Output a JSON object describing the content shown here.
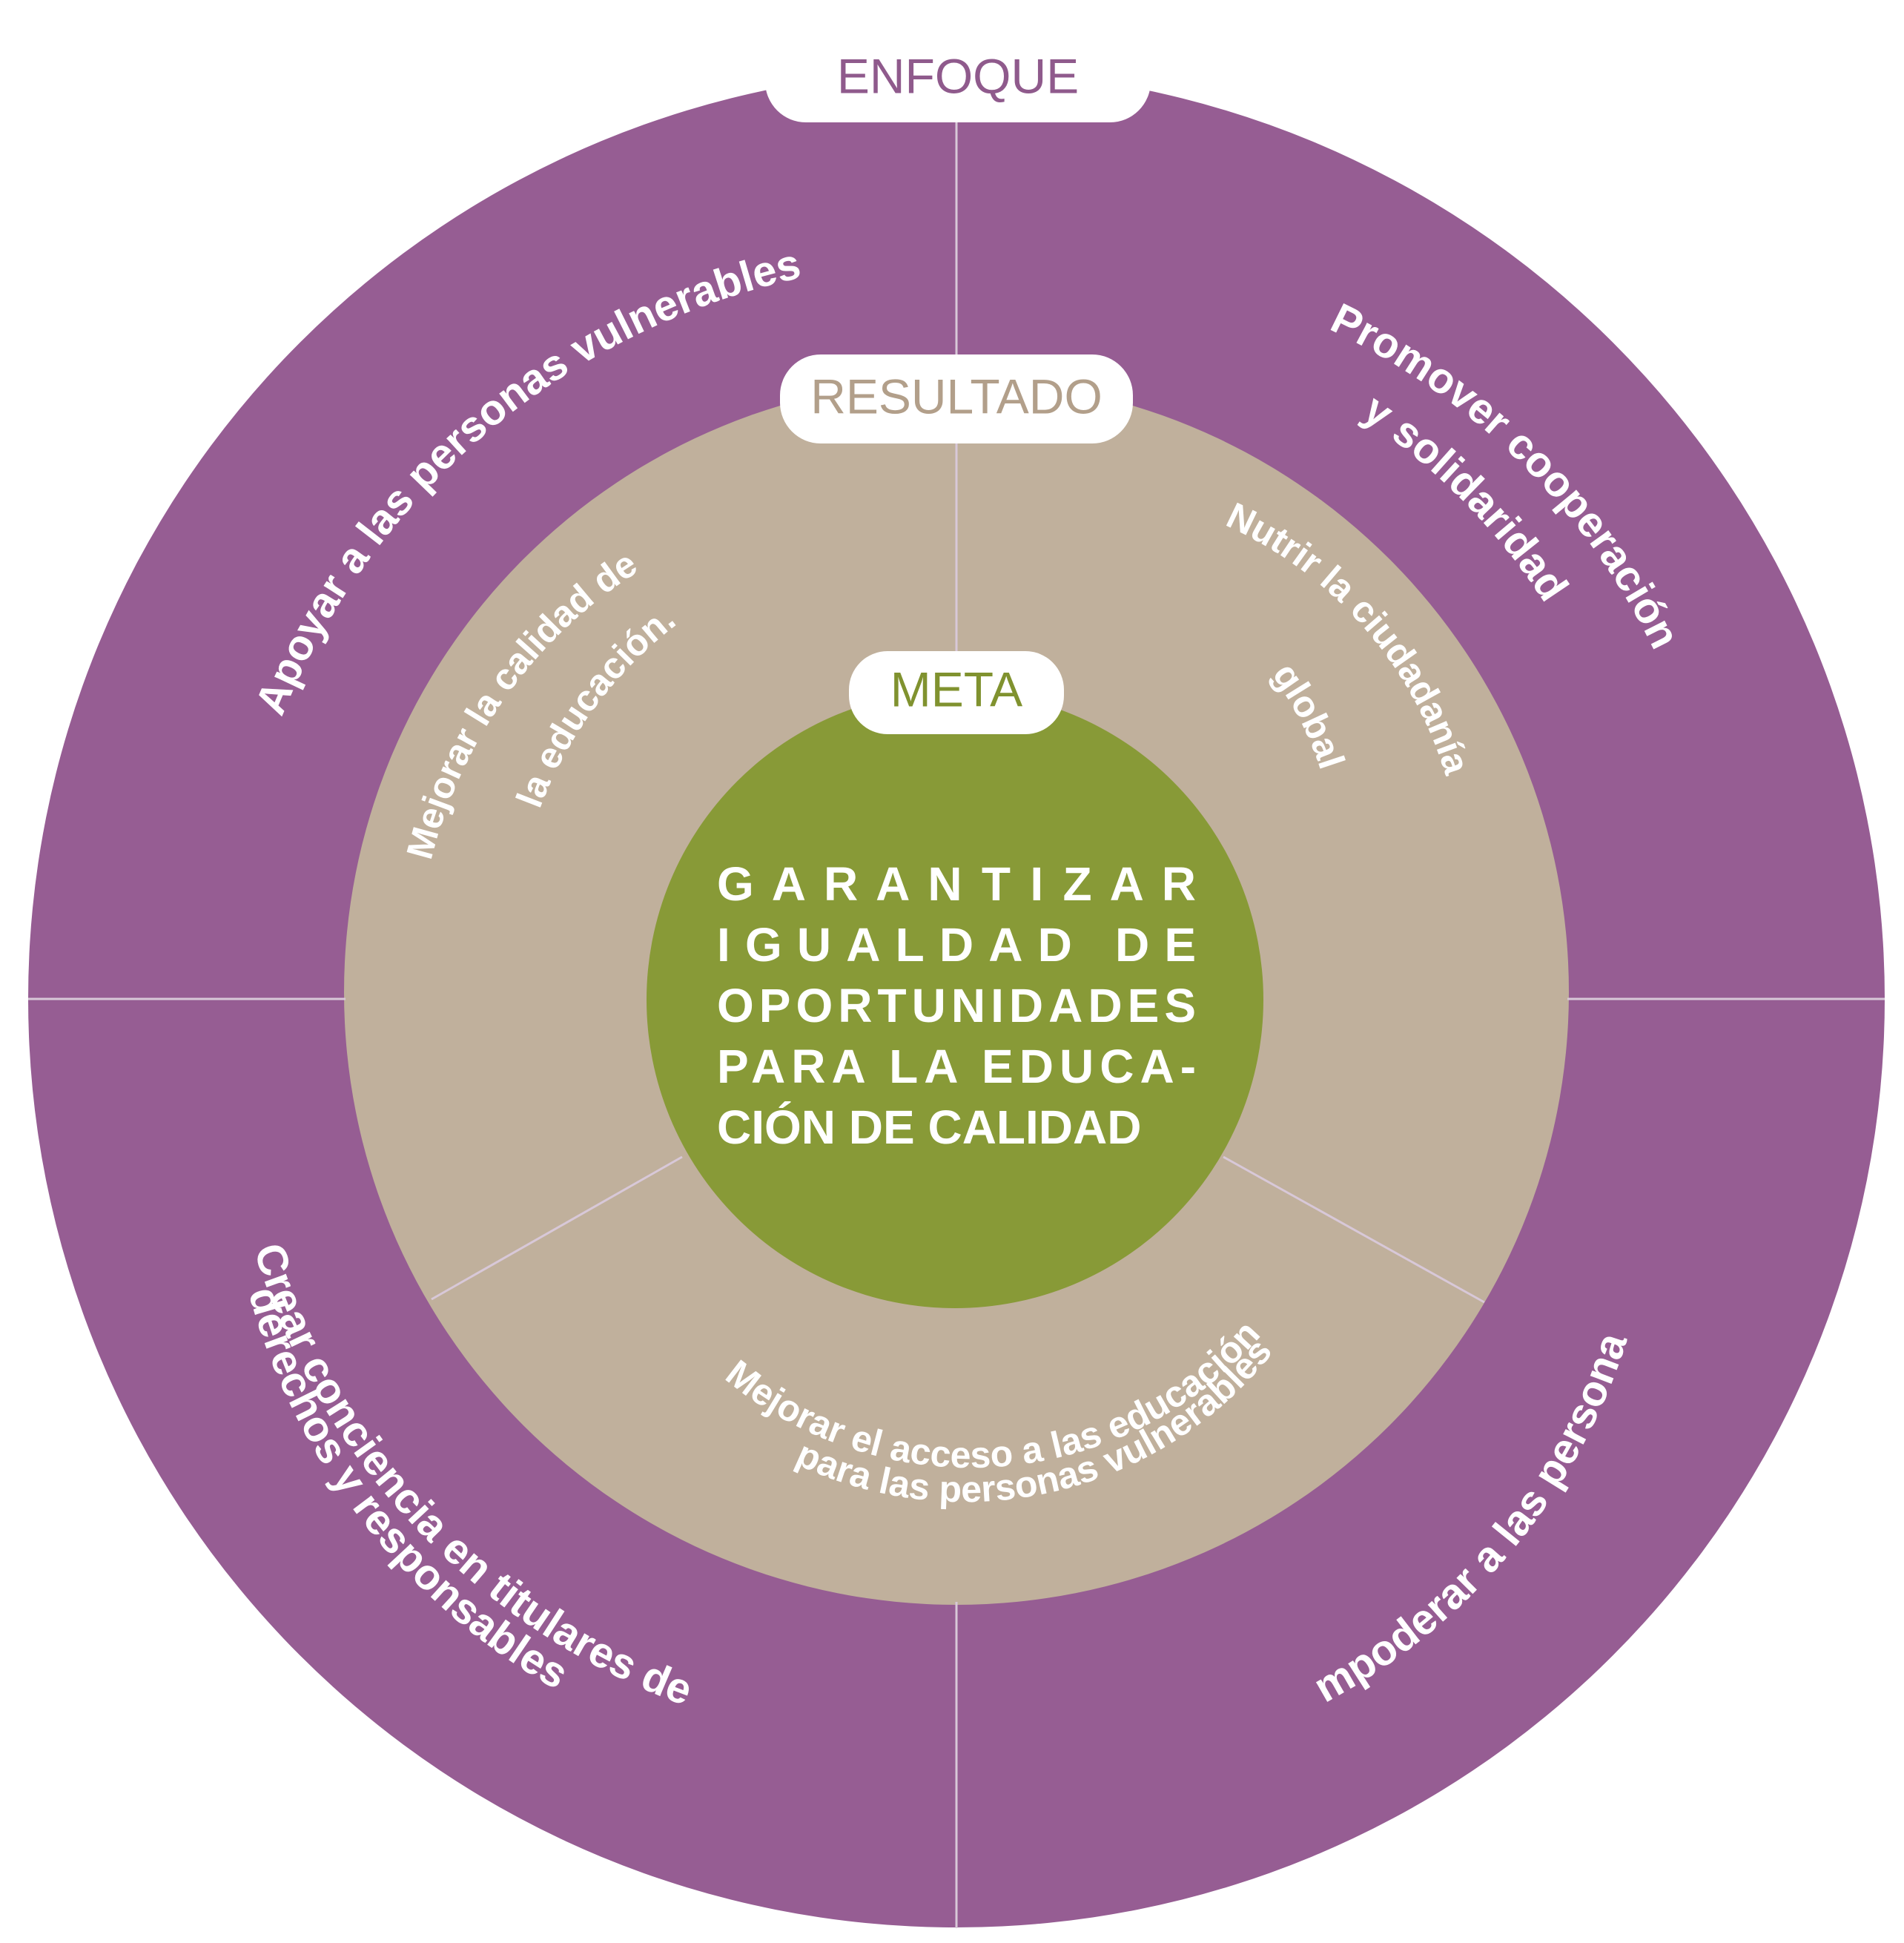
{
  "colors": {
    "outer_ring": "#965d93",
    "middle_ring": "#c0b09c",
    "center_circle": "#889a37",
    "divider": "#d8c8d8",
    "pill_bg": "#ffffff",
    "enfoque_text": "#8f5a8c",
    "resultado_text": "#b29f8a",
    "meta_text": "#80922f"
  },
  "labels": {
    "enfoque": "ENFOQUE",
    "resultado": "RESULTADO",
    "meta": "META"
  },
  "outer_ring": {
    "top_left": "Apoyar a las personas vulnerables",
    "top_right": [
      "Promover cooperación",
      "y solidaridad"
    ],
    "bottom_left": [
      "Crear conciencia en titulares de",
      "derechos y responsables"
    ],
    "bottom_right": "Empoderar a las personas"
  },
  "middle_ring": {
    "left": [
      "Mejorar la calidad de",
      "la educación."
    ],
    "right": [
      "Nutrir la ciudadanía",
      "global"
    ],
    "bottom": [
      "Mejorar el acceso a las educación",
      "para las personas vulnerables"
    ]
  },
  "center": {
    "lines": [
      "G A R A N T I Z A R",
      "IGUALDAD DE",
      "OPORTUNIDADES",
      "PARA LA EDUCA-",
      "CIÓN DE CALIDAD"
    ]
  }
}
